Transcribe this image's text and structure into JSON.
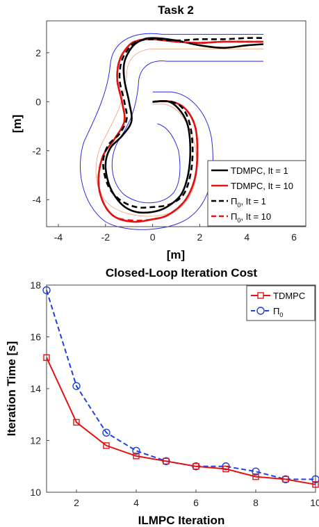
{
  "chart_data": [
    {
      "type": "line",
      "title": "Task 2",
      "xlabel": "[m]",
      "ylabel": "[m]",
      "xlim": [
        -4.5,
        6.5
      ],
      "ylim": [
        -5.1,
        3.3
      ],
      "xticks": [
        "-4",
        "-2",
        "0",
        "2",
        "4",
        "6"
      ],
      "yticks": [
        "2",
        "0",
        "-2",
        "-4"
      ],
      "grid": false,
      "legend_position": "bottom-right",
      "track_color": "#2a2ae0",
      "series": [
        {
          "name": "TDMPC, It = 1",
          "color": "#000000",
          "style": "solid",
          "x": [
            0,
            0.7,
            1.2,
            1.5,
            1.6,
            1.5,
            1.2,
            0.6,
            0,
            -0.7,
            -1.3,
            -1.8,
            -2.0,
            -1.8,
            -1.3,
            -0.9,
            -1.0,
            -1.2,
            -1.2,
            -0.9,
            -0.5,
            0,
            1,
            2,
            3,
            4,
            4.7
          ],
          "y": [
            0,
            0,
            -0.4,
            -1.0,
            -2.0,
            -3.0,
            -3.8,
            -4.3,
            -4.5,
            -4.5,
            -4.2,
            -3.5,
            -2.6,
            -1.9,
            -1.4,
            -0.8,
            0,
            0.9,
            1.6,
            2.2,
            2.5,
            2.6,
            2.5,
            2.3,
            2.2,
            2.3,
            2.35
          ]
        },
        {
          "name": "TDMPC, It = 10",
          "color": "#e11212",
          "style": "solid",
          "x": [
            0,
            0.8,
            1.4,
            1.8,
            1.9,
            1.8,
            1.4,
            0.7,
            0,
            -0.8,
            -1.6,
            -2.1,
            -2.3,
            -2.1,
            -1.6,
            -1.2,
            -1.3,
            -1.5,
            -1.4,
            -1.0,
            -0.6,
            0,
            1,
            2,
            3,
            4,
            4.7
          ],
          "y": [
            0,
            0,
            -0.3,
            -1.0,
            -2.0,
            -3.1,
            -4.0,
            -4.6,
            -4.8,
            -4.9,
            -4.7,
            -4.1,
            -3.2,
            -2.2,
            -1.5,
            -0.8,
            0,
            0.9,
            1.7,
            2.3,
            2.5,
            2.55,
            2.45,
            2.4,
            2.45,
            2.45,
            2.45
          ]
        },
        {
          "name": "Π0, It = 1",
          "color": "#000000",
          "style": "dashed",
          "x": [
            0,
            0.8,
            1.3,
            1.6,
            1.7,
            1.6,
            1.3,
            0.7,
            0,
            -0.7,
            -1.4,
            -1.9,
            -2.1,
            -1.9,
            -1.4,
            -1.1,
            -1.2,
            -1.4,
            -1.3,
            -0.9,
            -0.5,
            0,
            1,
            2,
            3,
            4,
            4.7
          ],
          "y": [
            0,
            0,
            -0.3,
            -1.0,
            -2.0,
            -3.0,
            -3.8,
            -4.2,
            -4.3,
            -4.3,
            -4.0,
            -3.4,
            -2.5,
            -1.8,
            -1.3,
            -0.7,
            0,
            0.9,
            1.7,
            2.3,
            2.5,
            2.55,
            2.5,
            2.55,
            2.55,
            2.6,
            2.6
          ]
        },
        {
          "name": "Π0, It = 10",
          "color": "#e11212",
          "style": "dashed",
          "x": [
            0,
            0.8,
            1.4,
            1.8,
            1.9,
            1.8,
            1.4,
            0.7,
            0,
            -0.8,
            -1.6,
            -2.1,
            -2.3,
            -2.1,
            -1.6,
            -1.2,
            -1.3,
            -1.5,
            -1.4,
            -1.0,
            -0.6,
            0,
            1,
            2,
            3,
            4,
            4.7
          ],
          "y": [
            0,
            0,
            -0.3,
            -1.0,
            -2.0,
            -3.1,
            -4.0,
            -4.6,
            -4.8,
            -4.85,
            -4.7,
            -4.1,
            -3.2,
            -2.2,
            -1.5,
            -0.8,
            0,
            0.9,
            1.7,
            2.3,
            2.5,
            2.55,
            2.45,
            2.4,
            2.45,
            2.45,
            2.45
          ]
        }
      ],
      "legend_labels": [
        {
          "text": "TDMPC, It = 1"
        },
        {
          "text": "TDMPC, It = 10"
        },
        {
          "pre": "Π",
          "sub": "0",
          "post": ", It = 1"
        },
        {
          "pre": "Π",
          "sub": "0",
          "post": ", It = 10"
        }
      ]
    },
    {
      "type": "line",
      "title": "Closed-Loop Iteration Cost",
      "xlabel": "ILMPC Iteration",
      "ylabel": "Iteration Time [s]",
      "xlim": [
        1,
        10
      ],
      "ylim": [
        10,
        18
      ],
      "xticks": [
        "2",
        "4",
        "6",
        "8",
        "10"
      ],
      "yticks": [
        "10",
        "12",
        "14",
        "16",
        "18"
      ],
      "grid": false,
      "legend_position": "top-right",
      "x": [
        1,
        2,
        3,
        4,
        5,
        6,
        7,
        8,
        9,
        10
      ],
      "series": [
        {
          "name": "TDMPC",
          "color": "#e11212",
          "style": "solid",
          "marker": "square",
          "values": [
            15.2,
            12.7,
            11.8,
            11.4,
            11.2,
            11.0,
            10.9,
            10.6,
            10.5,
            10.3
          ]
        },
        {
          "name": "Π0",
          "color": "#1f3fe0",
          "style": "dashed",
          "marker": "circle",
          "values": [
            17.8,
            14.1,
            12.3,
            11.6,
            11.2,
            11.0,
            11.0,
            10.8,
            10.5,
            10.5
          ]
        }
      ],
      "legend_labels": [
        {
          "text": "TDMPC"
        },
        {
          "pre": "Π",
          "sub": "0",
          "post": ""
        }
      ]
    }
  ]
}
